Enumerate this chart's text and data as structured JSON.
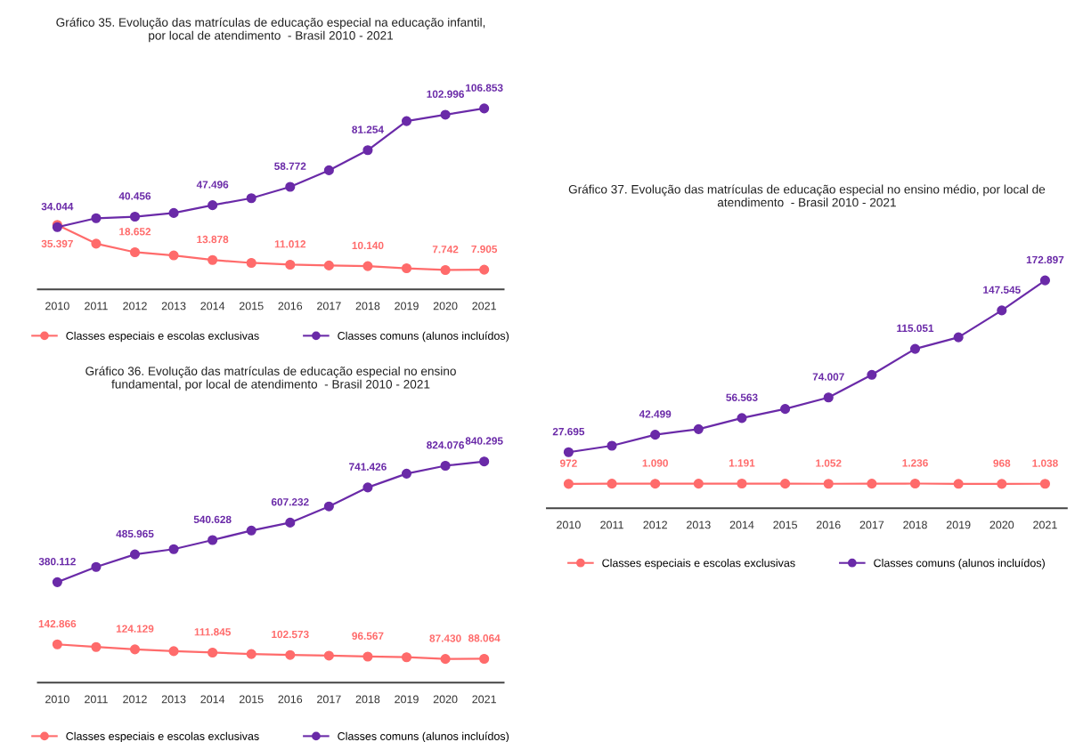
{
  "chart_data": [
    {
      "type": "line",
      "title": "Gráfico 35. Evolução das matrículas de educação especial na educação infantil,\npor local de atendimento  - Brasil 2010 - 2021",
      "categories": [
        "2010",
        "2011",
        "2012",
        "2013",
        "2014",
        "2015",
        "2016",
        "2017",
        "2018",
        "2019",
        "2020",
        "2021"
      ],
      "marker": "circle",
      "legend": "bottom",
      "grid": false,
      "series": [
        {
          "name": "Classes especiais e escolas exclusivas",
          "color": "#ff6b6b",
          "values": [
            35397,
            23900,
            18652,
            16700,
            13878,
            12100,
            11012,
            10500,
            10140,
            8800,
            7742,
            7905
          ],
          "value_labels": [
            "35.397",
            null,
            "18.652",
            null,
            "13.878",
            null,
            "11.012",
            null,
            "10.140",
            null,
            "7.742",
            "7.905"
          ]
        },
        {
          "name": "Classes comuns (alunos incluídos)",
          "color": "#6a2aa8",
          "values": [
            34044,
            39500,
            40456,
            42700,
            47496,
            51800,
            58772,
            68900,
            81254,
            99100,
            102996,
            106853
          ],
          "value_labels": [
            "34.044",
            null,
            "40.456",
            null,
            "47.496",
            null,
            "58.772",
            null,
            "81.254",
            null,
            "102.996",
            "106.853"
          ]
        }
      ]
    },
    {
      "type": "line",
      "title": "Gráfico 36. Evolução das matrículas de educação especial no ensino\nfundamental, por local de atendimento  - Brasil 2010 - 2021",
      "categories": [
        "2010",
        "2011",
        "2012",
        "2013",
        "2014",
        "2015",
        "2016",
        "2017",
        "2018",
        "2019",
        "2020",
        "2021"
      ],
      "marker": "circle",
      "legend": "bottom",
      "grid": false,
      "series": [
        {
          "name": "Classes especiais e escolas exclusivas",
          "color": "#ff6b6b",
          "values": [
            142866,
            133000,
            124129,
            117000,
            111845,
            106000,
            102573,
            100000,
            96567,
            94000,
            87430,
            88064
          ],
          "value_labels": [
            "142.866",
            null,
            "124.129",
            null,
            "111.845",
            null,
            "102.573",
            null,
            "96.567",
            null,
            "87.430",
            "88.064"
          ]
        },
        {
          "name": "Classes comuns (alunos incluídos)",
          "color": "#6a2aa8",
          "values": [
            380112,
            438000,
            485965,
            506000,
            540628,
            577000,
            607232,
            669000,
            741426,
            794000,
            824076,
            840295
          ],
          "value_labels": [
            "380.112",
            null,
            "485.965",
            null,
            "540.628",
            null,
            "607.232",
            null,
            "741.426",
            null,
            "824.076",
            "840.295"
          ]
        }
      ]
    },
    {
      "type": "line",
      "title": "Gráfico 37. Evolução das matrículas de educação especial no ensino médio, por local de\natendimento  - Brasil 2010 - 2021",
      "categories": [
        "2010",
        "2011",
        "2012",
        "2013",
        "2014",
        "2015",
        "2016",
        "2017",
        "2018",
        "2019",
        "2020",
        "2021"
      ],
      "marker": "circle",
      "legend": "bottom",
      "grid": false,
      "series": [
        {
          "name": "Classes especiais e escolas exclusivas",
          "color": "#ff6b6b",
          "values": [
            972,
            1100,
            1090,
            1150,
            1191,
            1100,
            1052,
            1150,
            1236,
            1000,
            968,
            1038
          ],
          "value_labels": [
            "972",
            null,
            "1.090",
            null,
            "1.191",
            null,
            "1.052",
            null,
            "1.236",
            null,
            "968",
            "1.038"
          ]
        },
        {
          "name": "Classes comuns (alunos incluídos)",
          "color": "#6a2aa8",
          "values": [
            27695,
            33200,
            42499,
            47200,
            56563,
            64300,
            74007,
            93100,
            115051,
            124800,
            147545,
            172897
          ],
          "value_labels": [
            "27.695",
            null,
            "42.499",
            null,
            "56.563",
            null,
            "74.007",
            null,
            "115.051",
            null,
            "147.545",
            "172.897"
          ]
        }
      ]
    }
  ]
}
